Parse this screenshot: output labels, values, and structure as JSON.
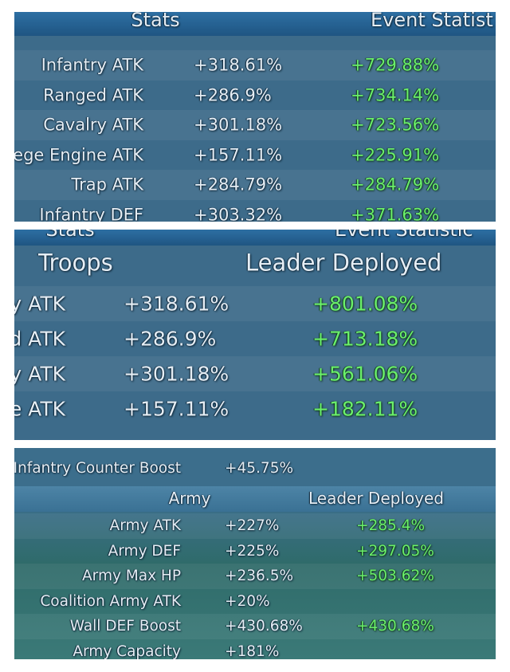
{
  "panels": [
    {
      "header": [
        "Stats",
        "Event Statist"
      ],
      "rows": [
        [
          "Infantry ATK",
          "+318.61%",
          "+729.88%"
        ],
        [
          "Ranged ATK",
          "+286.9%",
          "+734.14%"
        ],
        [
          "Cavalry ATK",
          "+301.18%",
          "+723.56%"
        ],
        [
          "ege Engine ATK",
          "+157.11%",
          "+225.91%"
        ],
        [
          "Trap ATK",
          "+284.79%",
          "+284.79%"
        ],
        [
          "Infantry DEF",
          "+303.32%",
          "+371.63%"
        ]
      ]
    },
    {
      "header": [
        "Stats",
        "Event Statistic"
      ],
      "columns": [
        "Troops",
        "Leader Deployed"
      ],
      "rows": [
        [
          "y ATK",
          "+318.61%",
          "+801.08%"
        ],
        [
          "d ATK",
          "+286.9%",
          "+713.18%"
        ],
        [
          "y ATK",
          "+301.18%",
          "+561.06%"
        ],
        [
          "e ATK",
          "+157.11%",
          "+182.11%"
        ]
      ]
    },
    {
      "top_row": [
        "Infantry Counter Boost",
        "+45.75%"
      ],
      "columns": [
        "Army",
        "Leader Deployed"
      ],
      "rows": [
        [
          "Army ATK",
          "+227%",
          "+285.4%"
        ],
        [
          "Army DEF",
          "+225%",
          "+297.05%"
        ],
        [
          "Army Max HP",
          "+236.5%",
          "+503.62%"
        ],
        [
          "Coalition Army ATK",
          "+20%"
        ],
        [
          "Wall DEF Boost",
          "+430.68%",
          "+430.68%"
        ],
        [
          "Army Capacity",
          "+181%"
        ]
      ]
    }
  ]
}
